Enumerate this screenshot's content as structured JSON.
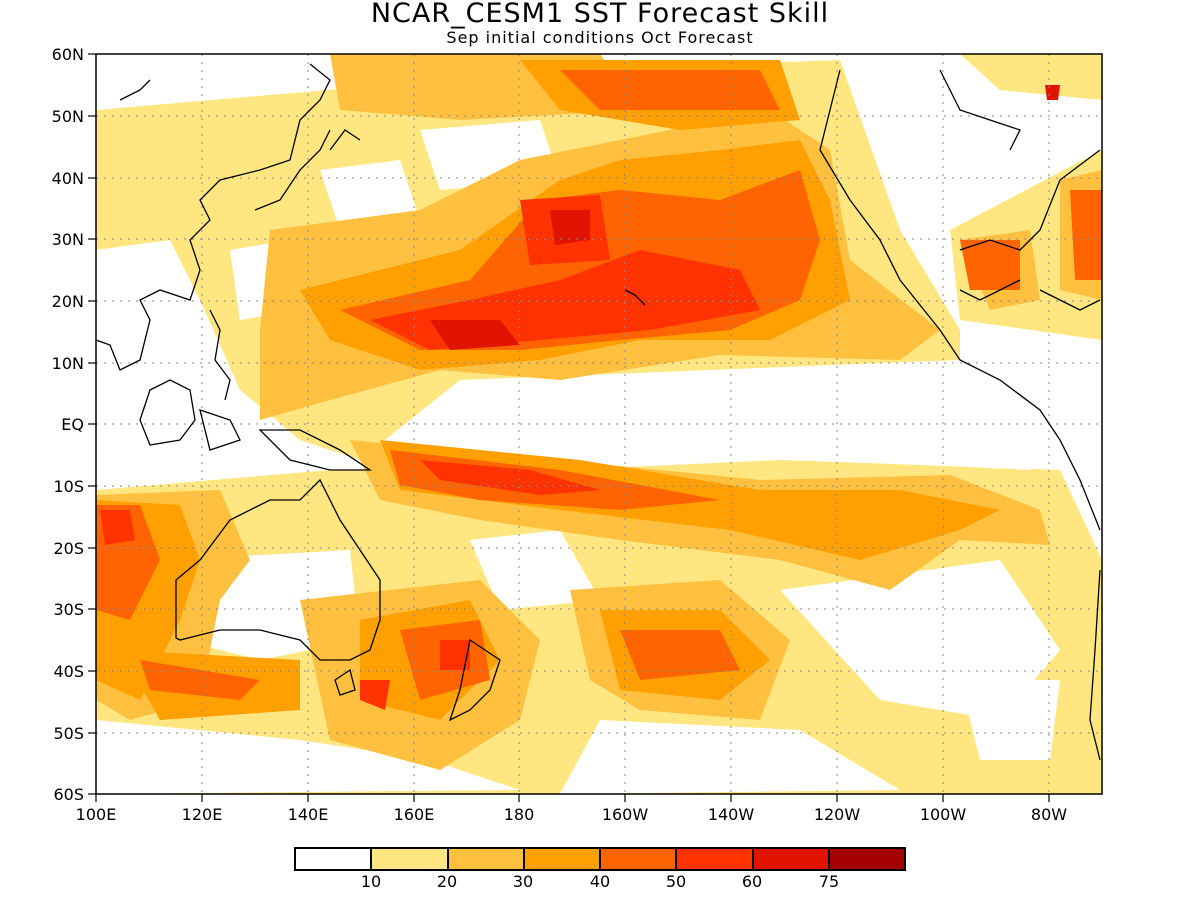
{
  "title": "NCAR_CESM1 SST Forecast Skill",
  "subtitle": "Sep initial conditions  Oct Forecast",
  "axes": {
    "lat_labels": [
      "60N",
      "50N",
      "40N",
      "30N",
      "20N",
      "10N",
      "EQ",
      "10S",
      "20S",
      "30S",
      "40S",
      "50S",
      "60S"
    ],
    "lon_labels": [
      "100E",
      "120E",
      "140E",
      "160E",
      "180",
      "160W",
      "140W",
      "120W",
      "100W",
      "80W"
    ],
    "lat_range": [
      -60,
      60
    ],
    "lon_range": [
      100,
      290
    ],
    "grid": true
  },
  "colorbar": {
    "colors": [
      "#ffffff",
      "#ffe680",
      "#ffc040",
      "#ffa000",
      "#ff6400",
      "#ff3200",
      "#e11400",
      "#a50000"
    ],
    "labels": [
      "10",
      "20",
      "30",
      "40",
      "50",
      "60",
      "75"
    ]
  }
}
